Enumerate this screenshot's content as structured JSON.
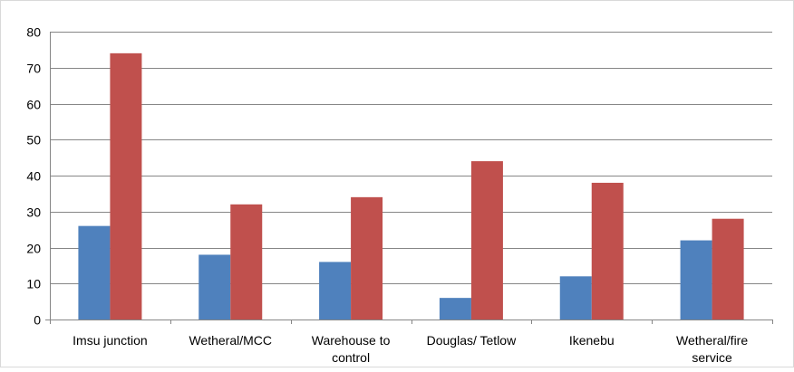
{
  "chart_data": {
    "type": "bar",
    "title": "",
    "xlabel": "",
    "ylabel": "",
    "ylim": [
      0,
      80
    ],
    "yticks": [
      0,
      10,
      20,
      30,
      40,
      50,
      60,
      70,
      80
    ],
    "grid": "horizontal",
    "legend": "none",
    "categories": [
      [
        "Imsu junction"
      ],
      [
        "Wetheral/MCC"
      ],
      [
        "Warehouse to",
        "control"
      ],
      [
        "Douglas/ Tetlow"
      ],
      [
        "Ikenebu"
      ],
      [
        "Wetheral/fire",
        "service"
      ]
    ],
    "series": [
      {
        "color": "#4F81BD",
        "values": [
          26,
          18,
          16,
          6,
          12,
          22
        ]
      },
      {
        "color": "#C0504D",
        "values": [
          74,
          32,
          34,
          44,
          38,
          28
        ]
      }
    ]
  }
}
